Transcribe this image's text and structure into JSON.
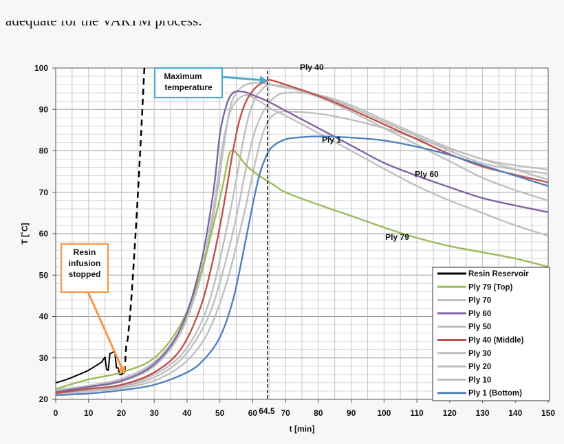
{
  "top_text": "adequate for the VARTM process.",
  "chart_data": {
    "type": "line",
    "xlabel": "t [min]",
    "ylabel": "T [˚C]",
    "xlim": [
      0,
      150
    ],
    "ylim": [
      20,
      100
    ],
    "xticks": [
      0,
      10,
      20,
      30,
      40,
      50,
      60,
      70,
      80,
      90,
      100,
      110,
      120,
      130,
      140,
      150
    ],
    "yticks": [
      20,
      30,
      40,
      50,
      60,
      70,
      80,
      90,
      100
    ],
    "grid": true,
    "legend_position": "bottom-right",
    "vline": {
      "x": 64.5,
      "label": "64.5"
    },
    "annotations": [
      {
        "lines": [
          "Maximum",
          "temperature"
        ],
        "border_color": "#4bacc6",
        "points_to": [
          64.5,
          97
        ]
      },
      {
        "lines": [
          "Resin",
          "infusion",
          "stopped"
        ],
        "border_color": "#f79646",
        "points_to": [
          21,
          26
        ]
      }
    ],
    "curve_labels": [
      {
        "text": "Ply 40",
        "x": 78,
        "y": 99.5
      },
      {
        "text": "Ply 1",
        "x": 84,
        "y": 82
      },
      {
        "text": "Ply 60",
        "x": 113,
        "y": 73.7
      },
      {
        "text": "Ply 79",
        "x": 104,
        "y": 58.5
      }
    ],
    "series": [
      {
        "name": "Resin Reservoir",
        "color": "#000000",
        "x": [
          0,
          3,
          5,
          8,
          10,
          12,
          14,
          15,
          15.5,
          16,
          16.5,
          17,
          18,
          18.5,
          19,
          19.5,
          20,
          21,
          21.5,
          22,
          23,
          24,
          25,
          26,
          27
        ],
        "y": [
          24,
          24.7,
          25.3,
          26.3,
          27,
          28,
          29,
          30.2,
          27.2,
          27,
          31,
          31.2,
          31.6,
          27.6,
          27.6,
          26,
          26,
          26.5,
          33,
          35,
          44,
          56,
          69,
          84,
          100
        ],
        "dashed_from_x": 21
      },
      {
        "name": "Ply 79 (Top)",
        "color": "#9bbb59",
        "x": [
          0,
          10,
          20,
          30,
          38,
          44,
          48,
          51,
          53,
          55,
          58,
          62,
          66,
          70,
          80,
          90,
          100,
          110,
          120,
          130,
          140,
          150
        ],
        "y": [
          22.5,
          24.8,
          26.5,
          30,
          38,
          50,
          62,
          72,
          79.5,
          79.5,
          76.5,
          74,
          72,
          70,
          67,
          64.3,
          61.5,
          59,
          57,
          55.5,
          54,
          52
        ]
      },
      {
        "name": "Ply 70",
        "color": "#bfbfbf",
        "x": [
          0,
          10,
          20,
          30,
          38,
          44,
          48,
          51,
          53,
          55,
          58,
          62,
          66,
          70,
          80,
          90,
          100,
          110,
          120,
          130,
          140,
          150
        ],
        "y": [
          22.3,
          23.3,
          25,
          29,
          37,
          50,
          66,
          82,
          89,
          92,
          93.5,
          92,
          90,
          88.5,
          84.3,
          80,
          75.7,
          71.5,
          68,
          65,
          62,
          59.5
        ]
      },
      {
        "name": "Ply 60",
        "color": "#8064a2",
        "x": [
          0,
          10,
          20,
          30,
          38,
          44,
          48,
          50,
          52,
          54,
          57,
          60,
          64.5,
          70,
          80,
          90,
          100,
          110,
          120,
          130,
          140,
          150
        ],
        "y": [
          21.8,
          23,
          24.5,
          28.5,
          37,
          52,
          70,
          84,
          91,
          94,
          94.3,
          93.5,
          92,
          89.7,
          85.5,
          81.3,
          77.1,
          74,
          71.2,
          68.6,
          66.8,
          65.2
        ]
      },
      {
        "name": "Ply 50",
        "color": "#bfbfbf",
        "x": [
          0,
          10,
          20,
          30,
          38,
          44,
          48,
          51,
          53,
          55,
          58,
          62,
          66,
          70,
          80,
          90,
          100,
          110,
          120,
          130,
          140,
          150
        ],
        "y": [
          21.7,
          22.9,
          24.3,
          28,
          36,
          49,
          64,
          80,
          90,
          94,
          96,
          96.5,
          96,
          95.5,
          93,
          89.5,
          85.5,
          81.5,
          77.5,
          73.5,
          70.5,
          68
        ]
      },
      {
        "name": "Ply 40 (Middle)",
        "color": "#c0504d",
        "x": [
          0,
          10,
          20,
          30,
          38,
          44,
          48,
          51,
          54,
          56,
          58,
          60,
          62,
          64.5,
          66,
          70,
          80,
          90,
          100,
          110,
          120,
          130,
          140,
          150
        ],
        "y": [
          21.5,
          22.5,
          23.5,
          26.5,
          32,
          42,
          54,
          66,
          80,
          87.5,
          92,
          94.5,
          96,
          97,
          97,
          96,
          93.3,
          90,
          86.4,
          82.8,
          79.2,
          76.2,
          74.2,
          72.4
        ]
      },
      {
        "name": "Ply 30",
        "color": "#bfbfbf",
        "x": [
          0,
          10,
          20,
          30,
          38,
          44,
          48,
          52,
          55,
          57,
          59,
          61,
          63,
          65,
          68,
          72,
          80,
          90,
          100,
          110,
          120,
          130,
          140,
          150
        ],
        "y": [
          21.3,
          22.3,
          23.2,
          26,
          30.5,
          38,
          47,
          61,
          73,
          82,
          89,
          93,
          95,
          96,
          95.5,
          95,
          93.5,
          90.5,
          87,
          83.5,
          80,
          77,
          75.5,
          74.5
        ]
      },
      {
        "name": "Ply 20",
        "color": "#bfbfbf",
        "x": [
          0,
          10,
          20,
          30,
          38,
          44,
          48,
          52,
          55,
          58,
          60,
          62,
          64,
          66,
          70,
          80,
          90,
          100,
          110,
          120,
          130,
          140,
          150
        ],
        "y": [
          21.2,
          22.1,
          23,
          25.3,
          29.5,
          36,
          43,
          54,
          64,
          76,
          83,
          87.5,
          90.5,
          92.5,
          94,
          93.5,
          91,
          87.5,
          84,
          80.7,
          78,
          76.5,
          75.5
        ]
      },
      {
        "name": "Ply 10",
        "color": "#bfbfbf",
        "x": [
          0,
          10,
          20,
          30,
          38,
          44,
          48,
          52,
          55,
          58,
          61,
          63,
          65,
          67,
          70,
          80,
          90,
          100,
          110,
          120,
          130,
          140,
          150
        ],
        "y": [
          21.1,
          21.9,
          22.7,
          24.5,
          28,
          33,
          39,
          48,
          57,
          67,
          78,
          84,
          87.5,
          89,
          89.5,
          89,
          87.5,
          85.5,
          83,
          80.5,
          78,
          75.5,
          73
        ]
      },
      {
        "name": "Ply 1 (Bottom)",
        "color": "#4f81bd",
        "x": [
          0,
          10,
          20,
          30,
          40,
          45,
          50,
          54,
          57,
          60,
          62,
          64,
          66,
          70,
          75,
          80,
          90,
          100,
          110,
          120,
          130,
          140,
          150
        ],
        "y": [
          21,
          21.4,
          22.2,
          23.5,
          26.5,
          29.5,
          35,
          44,
          55,
          67,
          74,
          78.5,
          81,
          82.8,
          83.3,
          83.5,
          83.2,
          82.5,
          81,
          79,
          76.5,
          74,
          71.5
        ]
      }
    ]
  }
}
